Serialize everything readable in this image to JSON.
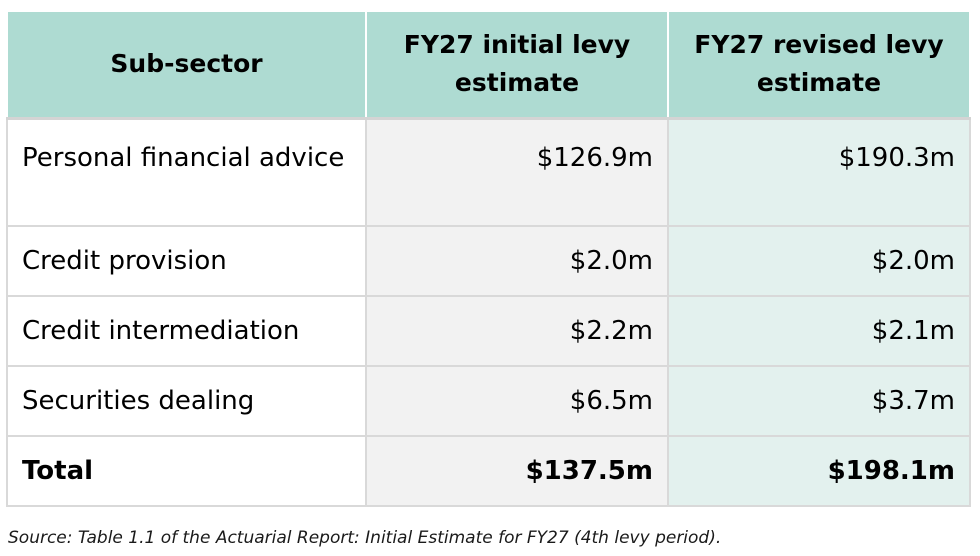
{
  "table": {
    "headers": {
      "subsector": "Sub-sector",
      "initial": "FY27 initial levy estimate",
      "revised": "FY27 revised levy estimate"
    },
    "rows": [
      {
        "subsector": "Personal financial advice",
        "initial": "$126.9m",
        "revised": "$190.3m"
      },
      {
        "subsector": "Credit provision",
        "initial": "$2.0m",
        "revised": "$2.0m"
      },
      {
        "subsector": "Credit intermediation",
        "initial": "$2.2m",
        "revised": "$2.1m"
      },
      {
        "subsector": "Securities dealing",
        "initial": "$6.5m",
        "revised": "$3.7m"
      }
    ],
    "total": {
      "label": "Total",
      "initial": "$137.5m",
      "revised": "$198.1m"
    }
  },
  "source": "Source: Table 1.1 of the Actuarial Report: Initial Estimate for FY27 (4th levy period).",
  "colors": {
    "header_bg": "#aedbd2",
    "initial_col_bg": "#f2f2f2",
    "revised_col_bg": "#e3f1ee",
    "grid": "#d9d9d9"
  }
}
